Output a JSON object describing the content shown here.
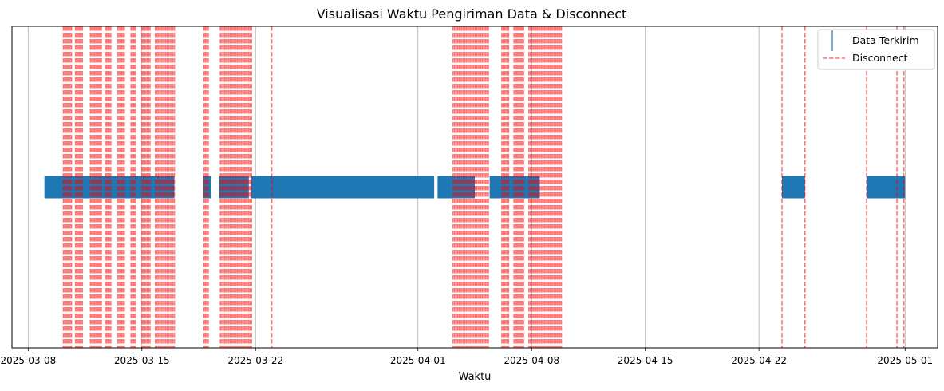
{
  "chart_data": {
    "type": "timeline",
    "title": "Visualisasi Waktu Pengiriman Data & Disconnect",
    "xlabel": "Waktu",
    "ylabel": "",
    "x_type": "date",
    "xlim": [
      "2025-03-07T00:00",
      "2025-05-03T00:00"
    ],
    "xticks": [
      "2025-03-08",
      "2025-03-15",
      "2025-03-22",
      "2025-04-01",
      "2025-04-08",
      "2025-04-15",
      "2025-04-22",
      "2025-05-01"
    ],
    "grid": "x",
    "legend": {
      "position": "top-right",
      "entries": [
        "Data Terkirim",
        "Disconnect"
      ]
    },
    "colors": {
      "data": "#1f77b4",
      "disconnect": "#ff0000",
      "grid": "#b0b0b0"
    },
    "series": [
      {
        "name": "Data Terkirim",
        "kind": "event markers",
        "intervals": [
          [
            "2025-03-09T00:00",
            "2025-03-17T00:00"
          ],
          [
            "2025-03-18T19:00",
            "2025-03-19T06:00"
          ],
          [
            "2025-03-19T18:00",
            "2025-03-21T14:00"
          ],
          [
            "2025-03-21T17:00",
            "2025-04-02T00:00"
          ],
          [
            "2025-04-02T05:00",
            "2025-04-04T12:00"
          ],
          [
            "2025-04-05T10:00",
            "2025-04-08T12:00"
          ],
          [
            "2025-04-23T10:00",
            "2025-04-24T20:00"
          ],
          [
            "2025-04-28T15:00",
            "2025-05-01T00:00"
          ]
        ]
      },
      {
        "name": "Disconnect",
        "kind": "vertical dashed lines",
        "dense_ranges": [
          [
            "2025-03-10T04:00",
            "2025-03-10T16:00"
          ],
          [
            "2025-03-10T22:00",
            "2025-03-11T08:00"
          ],
          [
            "2025-03-11T20:00",
            "2025-03-12T12:00"
          ],
          [
            "2025-03-12T18:00",
            "2025-03-13T02:00"
          ],
          [
            "2025-03-13T12:00",
            "2025-03-13T22:00"
          ],
          [
            "2025-03-14T08:00",
            "2025-03-14T14:00"
          ],
          [
            "2025-03-15T00:00",
            "2025-03-15T12:00"
          ],
          [
            "2025-03-15T20:00",
            "2025-03-17T00:00"
          ],
          [
            "2025-03-18T20:00",
            "2025-03-19T02:00"
          ],
          [
            "2025-03-19T20:00",
            "2025-03-21T16:00"
          ],
          [
            "2025-04-03T04:00",
            "2025-04-05T08:00"
          ],
          [
            "2025-04-06T04:00",
            "2025-04-06T14:00"
          ],
          [
            "2025-04-06T22:00",
            "2025-04-07T12:00"
          ],
          [
            "2025-04-07T20:00",
            "2025-04-09T20:00"
          ]
        ],
        "single_times": [
          "2025-03-21T18:00",
          "2025-03-23T00:00",
          "2025-04-23T10:00",
          "2025-04-24T20:00",
          "2025-04-28T15:00",
          "2025-04-30T12:00",
          "2025-04-30T22:00"
        ]
      }
    ]
  }
}
